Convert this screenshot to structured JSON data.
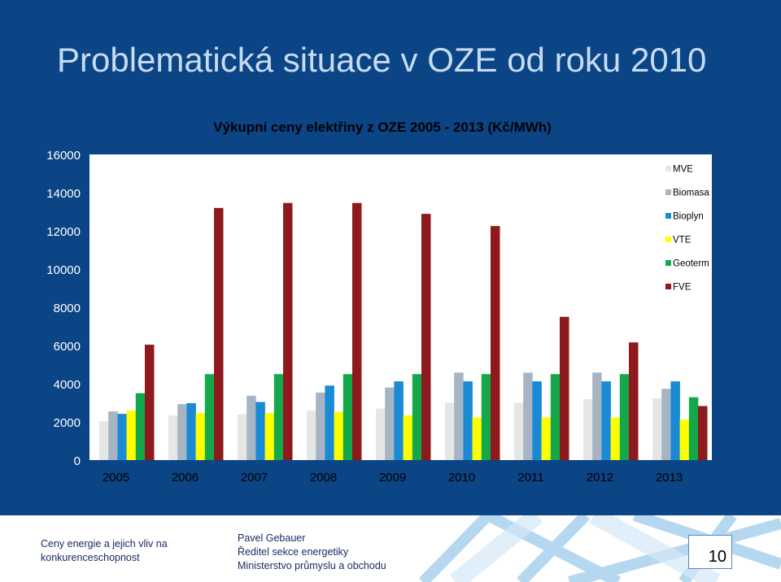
{
  "slide": {
    "title": "Problematická situace  v OZE od roku 2010",
    "page_number": "10"
  },
  "footer": {
    "left_lines": [
      "Ceny energie a jejich vliv na",
      "konkurenceschopnost"
    ],
    "mid_lines": [
      "Pavel Gebauer",
      "Ředitel sekce energetiky",
      "Ministerstvo průmyslu a obchodu"
    ]
  },
  "colors": {
    "background": "#0b4585",
    "MVE": "#e6e6e6",
    "Biomasa": "#a7b4c4",
    "Bioplyn": "#1a8ad4",
    "VTE": "#ffff00",
    "Geoterm": "#14a84a",
    "FVE": "#8e1a1d"
  },
  "chart_data": {
    "type": "bar",
    "title": "Výkupní ceny elektřiny z OZE 2005 - 2013 (Kč/MWh)",
    "categories": [
      "2005",
      "2006",
      "2007",
      "2008",
      "2009",
      "2010",
      "2011",
      "2012",
      "2013"
    ],
    "y_ticks": [
      "0",
      "2000",
      "4000",
      "6000",
      "8000",
      "10000",
      "12000",
      "14000",
      "16000"
    ],
    "ylim": [
      0,
      16000
    ],
    "grid": false,
    "legend_position": "right",
    "series": [
      {
        "name": "MVE",
        "values": [
          2040,
          2340,
          2390,
          2600,
          2700,
          3000,
          3000,
          3190,
          3230
        ]
      },
      {
        "name": "Biomasa",
        "values": [
          2550,
          2930,
          3370,
          3530,
          3800,
          4580,
          4580,
          4580,
          3730
        ]
      },
      {
        "name": "Bioplyn",
        "values": [
          2420,
          2980,
          3040,
          3900,
          4120,
          4120,
          4120,
          4120,
          4120
        ]
      },
      {
        "name": "VTE",
        "values": [
          2600,
          2460,
          2460,
          2530,
          2340,
          2230,
          2230,
          2230,
          2120
        ]
      },
      {
        "name": "Geoterm",
        "values": [
          3500,
          4500,
          4500,
          4500,
          4500,
          4500,
          4500,
          4500,
          3290
        ]
      },
      {
        "name": "FVE",
        "values": [
          6040,
          13200,
          13460,
          13460,
          12890,
          12250,
          7500,
          6160,
          2830
        ]
      }
    ]
  }
}
